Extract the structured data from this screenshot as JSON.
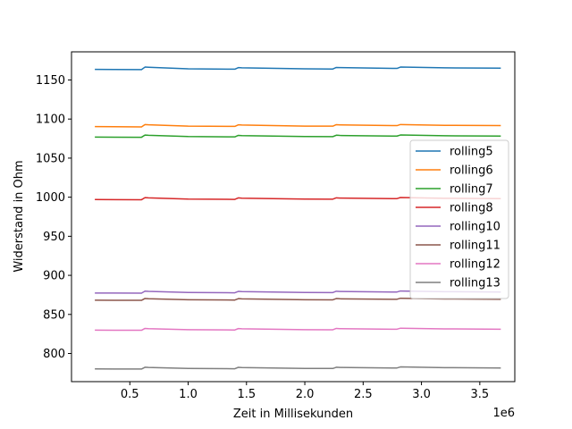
{
  "chart_data": {
    "type": "line",
    "title": "",
    "xlabel": "Zeit in Millisekunden",
    "ylabel": "Widerstand in Ohm",
    "x_offset_label": "1e6",
    "xlim": [
      0,
      3.8
    ],
    "ylim": [
      764,
      1186
    ],
    "x_ticks": [
      0.5,
      1.0,
      1.5,
      2.0,
      2.5,
      3.0,
      3.5
    ],
    "x_tick_labels": [
      "0.5",
      "1.0",
      "1.5",
      "2.0",
      "2.5",
      "3.0",
      "3.5"
    ],
    "y_ticks": [
      800,
      850,
      900,
      950,
      1000,
      1050,
      1100,
      1150
    ],
    "y_tick_labels": [
      "800",
      "850",
      "900",
      "950",
      "1000",
      "1050",
      "1100",
      "1150"
    ],
    "grid": false,
    "legend_position": "center-right",
    "x": [
      0.2,
      0.6,
      0.63,
      0.66,
      1.0,
      1.4,
      1.43,
      1.46,
      2.0,
      2.24,
      2.27,
      2.3,
      2.75,
      2.79,
      2.82,
      3.2,
      3.68
    ],
    "series": [
      {
        "name": "rolling5",
        "color": "#1f77b4",
        "values": [
          1163.5,
          1163.3,
          1166.5,
          1166.3,
          1164.2,
          1163.8,
          1165.8,
          1165.5,
          1164.2,
          1164.0,
          1166.0,
          1165.8,
          1164.8,
          1164.8,
          1166.5,
          1165.5,
          1165.2
        ]
      },
      {
        "name": "rolling6",
        "color": "#ff7f0e",
        "values": [
          1090.3,
          1090.0,
          1093.0,
          1092.7,
          1091.0,
          1090.6,
          1092.6,
          1092.3,
          1091.0,
          1090.9,
          1092.8,
          1092.5,
          1091.6,
          1091.6,
          1093.0,
          1092.0,
          1091.6
        ]
      },
      {
        "name": "rolling7",
        "color": "#2ca02c",
        "values": [
          1076.9,
          1076.7,
          1079.5,
          1079.2,
          1077.6,
          1077.2,
          1079.1,
          1078.8,
          1077.6,
          1077.5,
          1079.3,
          1079.0,
          1078.2,
          1078.2,
          1079.6,
          1078.6,
          1078.2
        ]
      },
      {
        "name": "rolling8",
        "color": "#d62728",
        "values": [
          997.0,
          996.8,
          999.4,
          999.1,
          997.6,
          997.2,
          999.1,
          998.8,
          997.6,
          997.5,
          999.2,
          998.9,
          998.2,
          998.2,
          999.6,
          998.6,
          998.2
        ]
      },
      {
        "name": "rolling10",
        "color": "#9467bd",
        "values": [
          877.4,
          877.2,
          879.8,
          879.5,
          878.1,
          877.7,
          879.5,
          879.2,
          878.1,
          878.0,
          879.7,
          879.4,
          878.7,
          878.7,
          880.0,
          879.1,
          878.7
        ]
      },
      {
        "name": "rolling11",
        "color": "#8c564b",
        "values": [
          868.2,
          868.0,
          870.4,
          870.1,
          868.8,
          868.4,
          870.2,
          869.9,
          868.8,
          868.7,
          870.3,
          870.0,
          869.4,
          869.4,
          870.7,
          869.8,
          869.4
        ]
      },
      {
        "name": "rolling12",
        "color": "#e377c2",
        "values": [
          829.9,
          829.7,
          832.1,
          831.8,
          830.5,
          830.1,
          831.9,
          831.6,
          830.5,
          830.4,
          832.1,
          831.8,
          831.1,
          831.1,
          832.4,
          831.5,
          831.1
        ]
      },
      {
        "name": "rolling13",
        "color": "#7f7f7f",
        "values": [
          780.3,
          780.1,
          782.4,
          782.1,
          780.9,
          780.5,
          782.3,
          782.0,
          780.9,
          780.8,
          782.4,
          782.1,
          781.5,
          781.5,
          782.8,
          781.9,
          781.5
        ]
      }
    ]
  }
}
